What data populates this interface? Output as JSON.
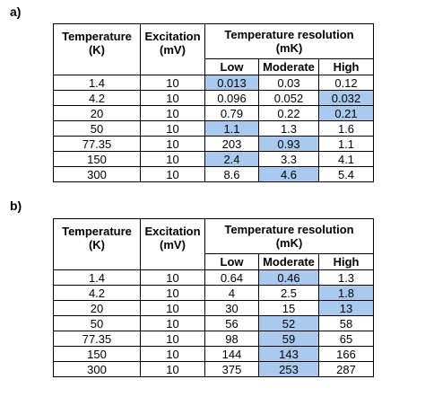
{
  "tables": [
    {
      "panel_label": "a)",
      "headers": {
        "temperature": [
          "Temperature",
          "(K)"
        ],
        "excitation": [
          "Excitation",
          "(mV)"
        ],
        "resolution": [
          "Temperature resolution",
          "(mK)"
        ],
        "low": "Low",
        "moderate": "Moderate",
        "high": "High"
      },
      "rows": [
        {
          "temp": "1.4",
          "exc": "10",
          "low": "0.013",
          "mod": "0.03",
          "high": "0.12"
        },
        {
          "temp": "4.2",
          "exc": "10",
          "low": "0.096",
          "mod": "0.052",
          "high": "0.032"
        },
        {
          "temp": "20",
          "exc": "10",
          "low": "0.79",
          "mod": "0.22",
          "high": "0.21"
        },
        {
          "temp": "50",
          "exc": "10",
          "low": "1.1",
          "mod": "1.3",
          "high": "1.6"
        },
        {
          "temp": "77.35",
          "exc": "10",
          "low": "203",
          "mod": "0.93",
          "high": "1.1"
        },
        {
          "temp": "150",
          "exc": "10",
          "low": "2.4",
          "mod": "3.3",
          "high": "4.1"
        },
        {
          "temp": "300",
          "exc": "10",
          "low": "8.6",
          "mod": "4.6",
          "high": "5.4"
        }
      ],
      "highlighted": [
        "low",
        "high",
        "high",
        "low",
        "mod",
        "low",
        "mod"
      ],
      "highlight_color": "#a9c9ee"
    },
    {
      "panel_label": "b)",
      "headers": {
        "temperature": [
          "Temperature",
          "(K)"
        ],
        "excitation": [
          "Excitation",
          "(mV)"
        ],
        "resolution": [
          "Temperature resolution",
          "(mK)"
        ],
        "low": "Low",
        "moderate": "Moderate",
        "high": "High"
      },
      "rows": [
        {
          "temp": "1.4",
          "exc": "10",
          "low": "0.64",
          "mod": "0.46",
          "high": "1.3"
        },
        {
          "temp": "4.2",
          "exc": "10",
          "low": "4",
          "mod": "2.5",
          "high": "1.8"
        },
        {
          "temp": "20",
          "exc": "10",
          "low": "30",
          "mod": "15",
          "high": "13"
        },
        {
          "temp": "50",
          "exc": "10",
          "low": "56",
          "mod": "52",
          "high": "58"
        },
        {
          "temp": "77.35",
          "exc": "10",
          "low": "98",
          "mod": "59",
          "high": "65"
        },
        {
          "temp": "150",
          "exc": "10",
          "low": "144",
          "mod": "143",
          "high": "166"
        },
        {
          "temp": "300",
          "exc": "10",
          "low": "375",
          "mod": "253",
          "high": "287"
        }
      ],
      "highlighted": [
        "mod",
        "high",
        "high",
        "mod",
        "mod",
        "mod",
        "mod"
      ],
      "highlight_color": "#a9c9ee"
    }
  ]
}
